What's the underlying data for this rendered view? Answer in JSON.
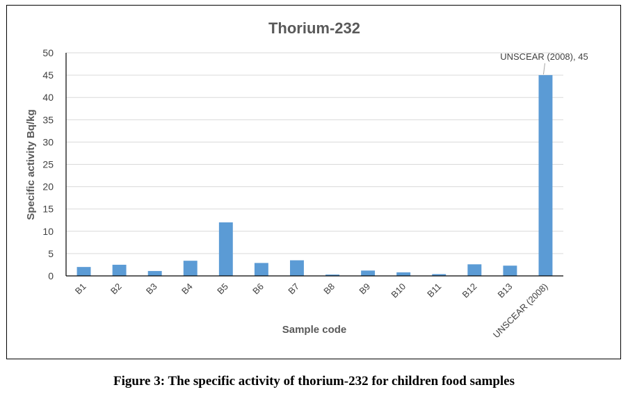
{
  "chart_data": {
    "type": "bar",
    "title": "Thorium-232",
    "xlabel": "Sample code",
    "ylabel": "Specific activity  Bq/kg",
    "categories": [
      "B1",
      "B2",
      "B3",
      "B4",
      "B5",
      "B6",
      "B7",
      "B8",
      "B9",
      "B10",
      "B11",
      "B12",
      "B13",
      "UNSCEAR (2008)"
    ],
    "values": [
      2.0,
      2.5,
      1.1,
      3.4,
      12.0,
      2.9,
      3.5,
      0.3,
      1.2,
      0.8,
      0.4,
      2.6,
      2.3,
      45
    ],
    "ylim": [
      0,
      50
    ],
    "yticks": [
      0,
      5,
      10,
      15,
      20,
      25,
      30,
      35,
      40,
      45,
      50
    ],
    "grid": true,
    "bar_color": "#5b9bd5",
    "annotation": "UNSCEAR (2008), 45"
  },
  "caption": "Figure 3: The specific activity of thorium-232 for children food samples"
}
